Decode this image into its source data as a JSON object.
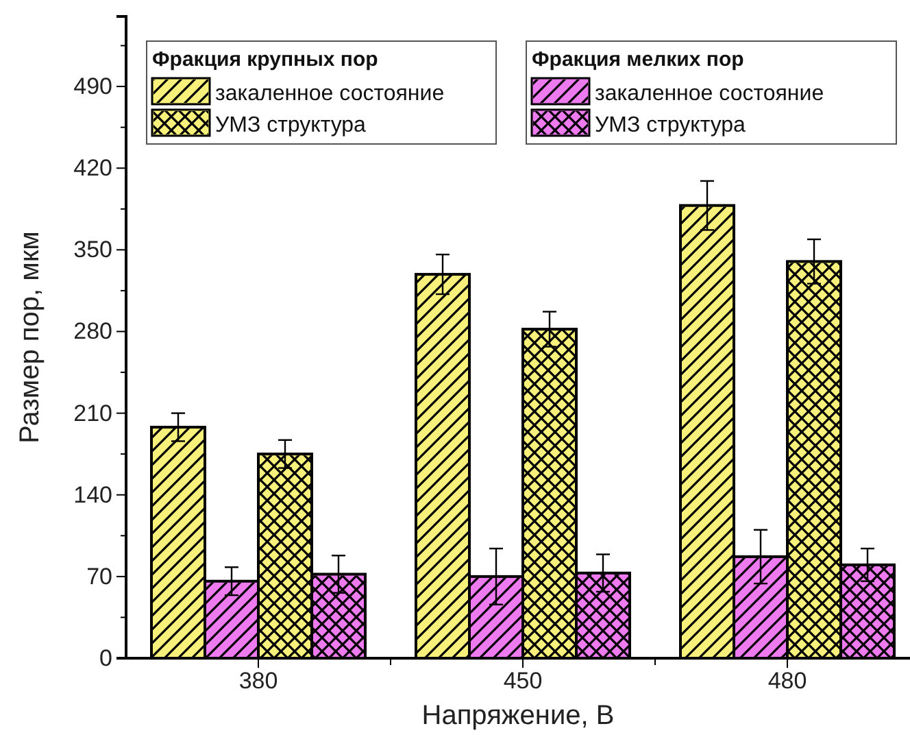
{
  "chart_data": {
    "type": "bar",
    "xlabel": "Напряжение, В",
    "ylabel": "Размер пор, мкм",
    "legend_title": "Фракция крупных пор",
    "annotations": [
      "Фракция мелких пор"
    ],
    "categories": [
      "380",
      "450",
      "480"
    ],
    "series": [
      {
        "name": "закаленное состояние",
        "color": "#f7f07a",
        "values": [
          198,
          329,
          388
        ],
        "errors": [
          12,
          17,
          21
        ]
      },
      {
        "name": "закаленное состояние",
        "color": "#ee7af0",
        "values": [
          66,
          70,
          87
        ],
        "errors": [
          12,
          24,
          23
        ]
      },
      {
        "name": "УМЗ структура",
        "color": "#f7f07a",
        "values": [
          175,
          282,
          340
        ],
        "errors": [
          12,
          15,
          19
        ]
      },
      {
        "name": "УМЗ структура",
        "color": "#ee7af0",
        "values": [
          72,
          73,
          80
        ],
        "errors": [
          16,
          16,
          14
        ]
      }
    ],
    "ylim": [
      0,
      550
    ],
    "yticks": [
      0,
      70,
      140,
      210,
      280,
      350,
      420,
      490
    ],
    "grid": false,
    "legend": "top"
  }
}
